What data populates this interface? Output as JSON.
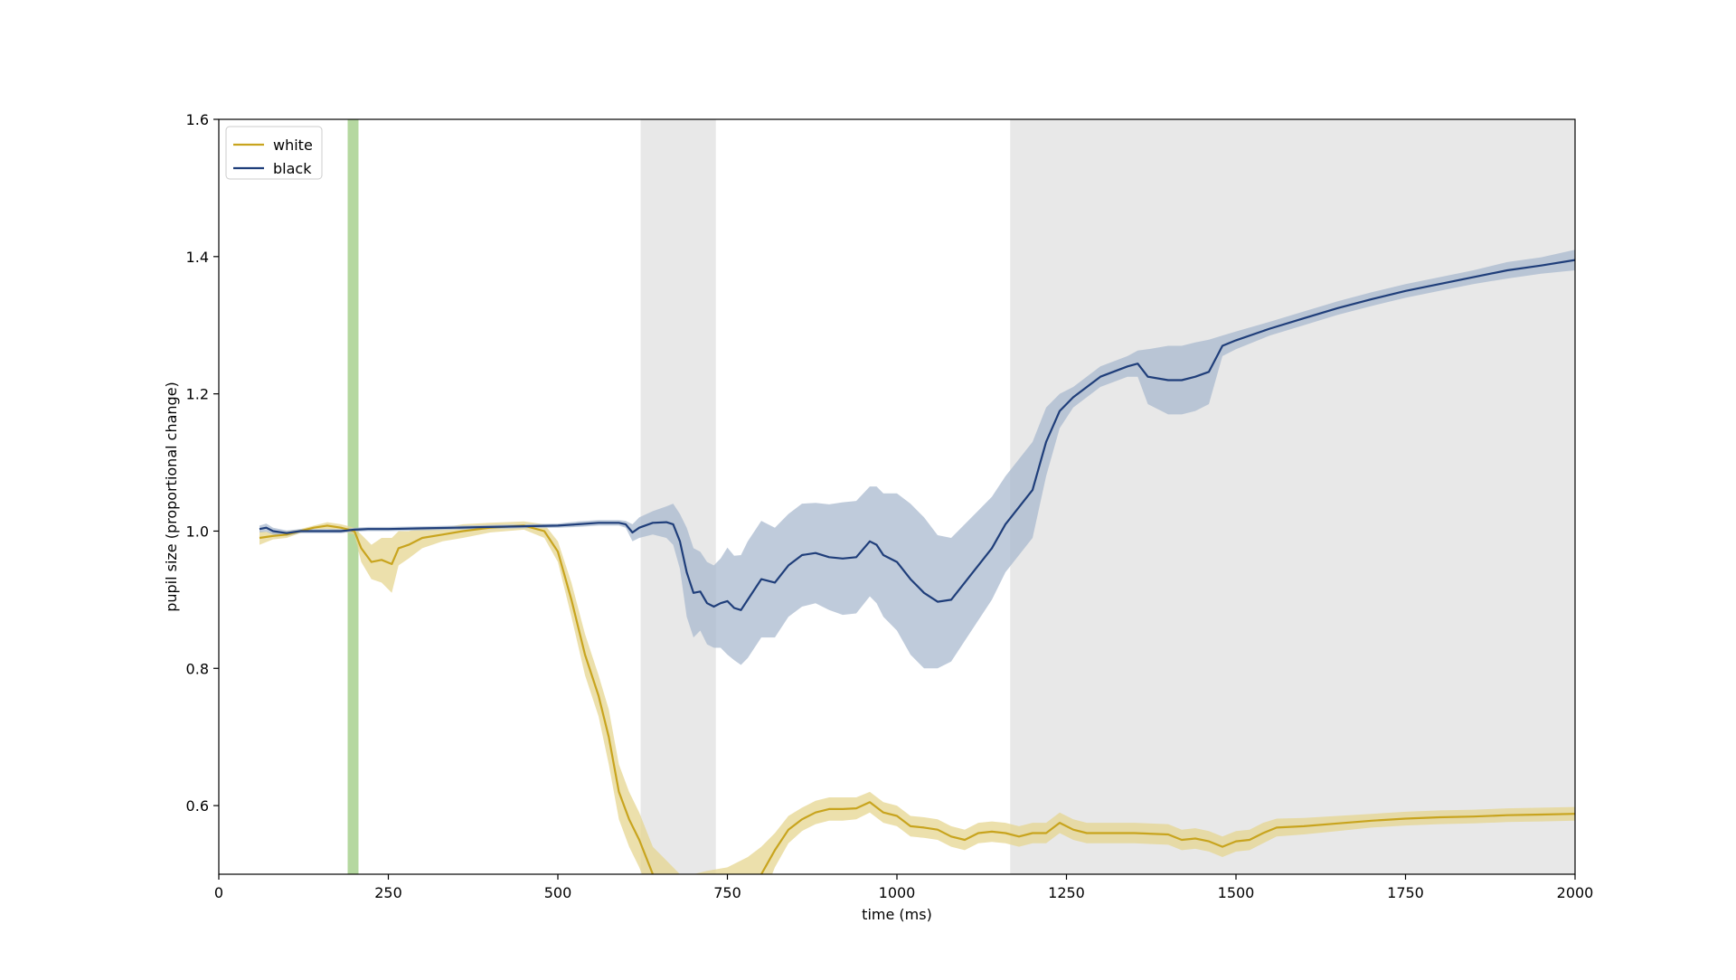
{
  "chart_data": {
    "type": "line",
    "title": "",
    "xlabel": "time (ms)",
    "ylabel": "pupil size (proportional change)",
    "xlim": [
      0,
      2000
    ],
    "ylim": [
      0.5,
      1.6
    ],
    "xticks": [
      0,
      250,
      500,
      750,
      1000,
      1250,
      1500,
      1750,
      2000
    ],
    "yticks": [
      0.6,
      0.8,
      1.0,
      1.2,
      1.4,
      1.6
    ],
    "xtick_labels": [
      "0",
      "250",
      "500",
      "750",
      "1000",
      "1250",
      "1500",
      "1750",
      "2000"
    ],
    "ytick_labels": [
      "0.6",
      "0.8",
      "1.0",
      "1.2",
      "1.4",
      "1.6"
    ],
    "grid": false,
    "legend_position": "upper-left",
    "shaded_regions": [
      {
        "x0": 190,
        "x1": 206,
        "color": "#b5d8a0"
      },
      {
        "x0": 622,
        "x1": 733,
        "color": "#e8e8e8"
      },
      {
        "x0": 1167,
        "x1": 2000,
        "color": "#e8e8e8"
      }
    ],
    "series": [
      {
        "name": "white",
        "color": "#c8a41e",
        "band_color": "#e6d690",
        "x": [
          60,
          80,
          100,
          120,
          140,
          160,
          180,
          200,
          210,
          225,
          240,
          255,
          265,
          280,
          300,
          330,
          360,
          400,
          450,
          480,
          500,
          520,
          540,
          560,
          575,
          590,
          605,
          620,
          640,
          660,
          680,
          700,
          720,
          750,
          780,
          800,
          820,
          840,
          860,
          880,
          900,
          920,
          940,
          960,
          980,
          1000,
          1020,
          1040,
          1060,
          1080,
          1100,
          1120,
          1140,
          1160,
          1180,
          1200,
          1220,
          1240,
          1260,
          1280,
          1300,
          1350,
          1400,
          1420,
          1440,
          1460,
          1480,
          1500,
          1520,
          1540,
          1560,
          1600,
          1650,
          1700,
          1750,
          1800,
          1850,
          1900,
          1950,
          2000
        ],
        "y": [
          0.99,
          0.993,
          0.995,
          1.0,
          1.005,
          1.008,
          1.005,
          1.0,
          0.975,
          0.955,
          0.958,
          0.952,
          0.975,
          0.98,
          0.99,
          0.995,
          1.0,
          1.005,
          1.008,
          1.0,
          0.97,
          0.9,
          0.82,
          0.76,
          0.7,
          0.62,
          0.58,
          0.55,
          0.5,
          0.48,
          0.46,
          0.46,
          0.465,
          0.47,
          0.485,
          0.5,
          0.535,
          0.565,
          0.58,
          0.59,
          0.595,
          0.595,
          0.596,
          0.605,
          0.59,
          0.585,
          0.57,
          0.568,
          0.565,
          0.555,
          0.55,
          0.56,
          0.562,
          0.56,
          0.555,
          0.56,
          0.56,
          0.575,
          0.565,
          0.56,
          0.56,
          0.56,
          0.558,
          0.55,
          0.552,
          0.548,
          0.54,
          0.548,
          0.55,
          0.56,
          0.568,
          0.57,
          0.574,
          0.578,
          0.581,
          0.583,
          0.584,
          0.586,
          0.587,
          0.588
        ],
        "lower": [
          0.98,
          0.988,
          0.99,
          0.997,
          1.002,
          1.003,
          1.0,
          0.995,
          0.955,
          0.93,
          0.925,
          0.91,
          0.95,
          0.96,
          0.975,
          0.985,
          0.99,
          0.998,
          1.002,
          0.99,
          0.955,
          0.875,
          0.79,
          0.73,
          0.66,
          0.58,
          0.54,
          0.51,
          0.46,
          0.44,
          0.42,
          0.42,
          0.425,
          0.43,
          0.445,
          0.46,
          0.51,
          0.545,
          0.563,
          0.573,
          0.578,
          0.578,
          0.58,
          0.59,
          0.575,
          0.57,
          0.555,
          0.553,
          0.55,
          0.54,
          0.535,
          0.545,
          0.547,
          0.545,
          0.54,
          0.545,
          0.545,
          0.56,
          0.55,
          0.545,
          0.545,
          0.545,
          0.543,
          0.535,
          0.537,
          0.533,
          0.525,
          0.533,
          0.535,
          0.545,
          0.555,
          0.558,
          0.563,
          0.568,
          0.571,
          0.573,
          0.574,
          0.576,
          0.577,
          0.578
        ],
        "upper": [
          1.0,
          0.998,
          1.0,
          1.003,
          1.008,
          1.013,
          1.01,
          1.005,
          0.995,
          0.98,
          0.99,
          0.99,
          1.0,
          1.0,
          1.005,
          1.005,
          1.01,
          1.012,
          1.014,
          1.01,
          0.985,
          0.925,
          0.85,
          0.79,
          0.74,
          0.66,
          0.62,
          0.59,
          0.54,
          0.52,
          0.5,
          0.5,
          0.505,
          0.51,
          0.525,
          0.54,
          0.56,
          0.585,
          0.597,
          0.607,
          0.612,
          0.612,
          0.612,
          0.62,
          0.605,
          0.6,
          0.585,
          0.583,
          0.58,
          0.57,
          0.565,
          0.575,
          0.577,
          0.575,
          0.57,
          0.575,
          0.575,
          0.59,
          0.58,
          0.575,
          0.575,
          0.575,
          0.573,
          0.565,
          0.567,
          0.563,
          0.555,
          0.563,
          0.565,
          0.575,
          0.581,
          0.582,
          0.585,
          0.588,
          0.591,
          0.593,
          0.594,
          0.596,
          0.597,
          0.598
        ]
      },
      {
        "name": "black",
        "color": "#1f3e7a",
        "band_color": "#a9b9cf",
        "x": [
          60,
          70,
          80,
          100,
          120,
          140,
          160,
          180,
          200,
          220,
          250,
          300,
          350,
          400,
          450,
          500,
          530,
          560,
          590,
          600,
          610,
          620,
          640,
          660,
          670,
          680,
          690,
          700,
          710,
          720,
          730,
          740,
          750,
          760,
          770,
          780,
          790,
          800,
          820,
          840,
          860,
          880,
          900,
          920,
          940,
          960,
          970,
          980,
          1000,
          1020,
          1040,
          1060,
          1080,
          1100,
          1120,
          1140,
          1160,
          1180,
          1200,
          1220,
          1240,
          1260,
          1300,
          1340,
          1355,
          1370,
          1400,
          1420,
          1440,
          1460,
          1480,
          1500,
          1550,
          1600,
          1650,
          1700,
          1750,
          1800,
          1850,
          1900,
          1950,
          2000
        ],
        "y": [
          1.003,
          1.005,
          1.0,
          0.997,
          1.0,
          1.0,
          1.0,
          1.0,
          1.002,
          1.003,
          1.003,
          1.004,
          1.005,
          1.006,
          1.007,
          1.008,
          1.01,
          1.012,
          1.012,
          1.01,
          0.998,
          1.005,
          1.012,
          1.013,
          1.01,
          0.985,
          0.94,
          0.91,
          0.912,
          0.895,
          0.89,
          0.895,
          0.898,
          0.888,
          0.885,
          0.9,
          0.915,
          0.93,
          0.925,
          0.95,
          0.965,
          0.968,
          0.962,
          0.96,
          0.962,
          0.985,
          0.98,
          0.965,
          0.955,
          0.93,
          0.91,
          0.897,
          0.9,
          0.925,
          0.95,
          0.975,
          1.01,
          1.035,
          1.06,
          1.13,
          1.175,
          1.195,
          1.225,
          1.24,
          1.244,
          1.225,
          1.22,
          1.22,
          1.225,
          1.232,
          1.27,
          1.278,
          1.295,
          1.31,
          1.325,
          1.338,
          1.35,
          1.36,
          1.37,
          1.38,
          1.387,
          1.395
        ],
        "lower": [
          0.998,
          0.999,
          0.995,
          0.993,
          0.997,
          0.997,
          0.997,
          0.997,
          0.999,
          1.0,
          1.0,
          1.001,
          1.002,
          1.003,
          1.004,
          1.005,
          1.006,
          1.008,
          1.008,
          1.005,
          0.985,
          0.99,
          0.995,
          0.99,
          0.98,
          0.945,
          0.875,
          0.845,
          0.855,
          0.835,
          0.83,
          0.83,
          0.82,
          0.812,
          0.805,
          0.815,
          0.83,
          0.845,
          0.845,
          0.875,
          0.89,
          0.895,
          0.885,
          0.878,
          0.88,
          0.905,
          0.895,
          0.875,
          0.855,
          0.82,
          0.8,
          0.8,
          0.81,
          0.84,
          0.87,
          0.9,
          0.94,
          0.965,
          0.99,
          1.08,
          1.15,
          1.18,
          1.21,
          1.225,
          1.225,
          1.185,
          1.17,
          1.17,
          1.175,
          1.185,
          1.255,
          1.265,
          1.285,
          1.3,
          1.315,
          1.328,
          1.34,
          1.35,
          1.36,
          1.368,
          1.375,
          1.38
        ],
        "upper": [
          1.008,
          1.011,
          1.005,
          1.001,
          1.003,
          1.003,
          1.003,
          1.003,
          1.005,
          1.006,
          1.006,
          1.007,
          1.008,
          1.009,
          1.01,
          1.011,
          1.014,
          1.016,
          1.016,
          1.015,
          1.01,
          1.02,
          1.029,
          1.036,
          1.04,
          1.025,
          1.005,
          0.975,
          0.97,
          0.955,
          0.95,
          0.96,
          0.976,
          0.964,
          0.965,
          0.985,
          1.0,
          1.015,
          1.005,
          1.025,
          1.04,
          1.041,
          1.039,
          1.042,
          1.044,
          1.065,
          1.065,
          1.055,
          1.055,
          1.04,
          1.02,
          0.994,
          0.99,
          1.01,
          1.03,
          1.05,
          1.08,
          1.105,
          1.13,
          1.18,
          1.2,
          1.21,
          1.24,
          1.255,
          1.263,
          1.265,
          1.27,
          1.27,
          1.275,
          1.279,
          1.285,
          1.291,
          1.305,
          1.32,
          1.335,
          1.348,
          1.36,
          1.37,
          1.38,
          1.392,
          1.399,
          1.41
        ]
      }
    ]
  }
}
